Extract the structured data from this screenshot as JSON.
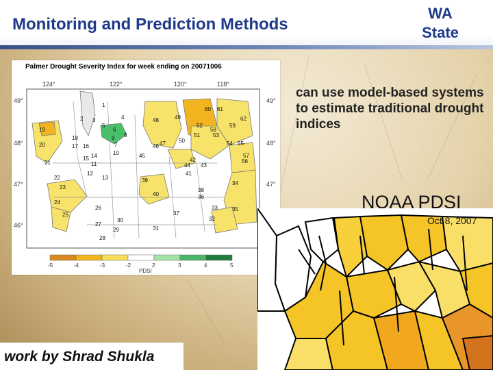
{
  "header": {
    "title": "Monitoring and Prediction Methods",
    "badge_line1": "WA",
    "badge_line2": "State",
    "title_color": "#1f3a8a"
  },
  "pdsi_map": {
    "title": "Palmer Drought Severity Index for week ending on 20071006",
    "longitude_labels": [
      "124°",
      "122°",
      "120°",
      "118°"
    ],
    "latitude_labels": [
      "49°",
      "48°",
      "47°",
      "46°"
    ],
    "colorbar_ticks": [
      "-5",
      "-4",
      "-3",
      "-2",
      "2",
      "3",
      "4",
      "5"
    ],
    "colorbar_label": "PDSI",
    "colorbar_colors": [
      "#d9871e",
      "#f2b520",
      "#f7df5a",
      "#ffffff",
      "#a3e3a6",
      "#48b864",
      "#1e7d3c"
    ],
    "region_numbers": [
      "1",
      "2",
      "3",
      "4",
      "5",
      "6",
      "7",
      "8",
      "9",
      "10",
      "11",
      "12",
      "13",
      "14",
      "15",
      "16",
      "17",
      "18",
      "19",
      "20",
      "21",
      "22",
      "23",
      "24",
      "25",
      "26",
      "27",
      "28",
      "29",
      "30",
      "31",
      "32",
      "33",
      "34",
      "35",
      "36",
      "37",
      "38",
      "39",
      "40",
      "41",
      "42",
      "43",
      "44",
      "45",
      "46",
      "47",
      "48",
      "49",
      "50",
      "51",
      "52",
      "53",
      "54",
      "55",
      "56",
      "57",
      "58",
      "59",
      "60",
      "61",
      "62"
    ]
  },
  "body_text": "can use model-based systems to estimate traditional drought indices",
  "noaa": {
    "label": "NOAA PDSI",
    "date": "Oct 8, 2007"
  },
  "credit": "work by Shrad Shukla"
}
